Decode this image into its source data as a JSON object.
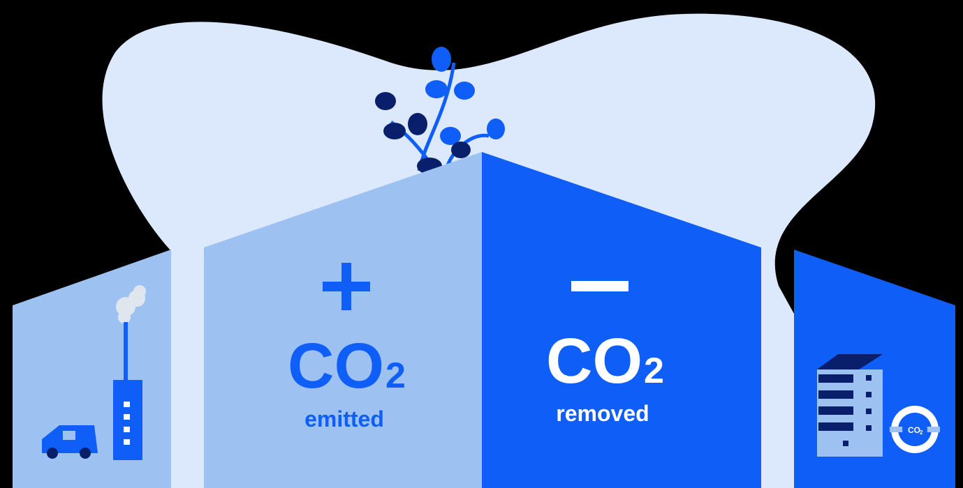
{
  "emitted_panel": {
    "formula": "CO",
    "subscript": "2",
    "label": "emitted"
  },
  "removed_panel": {
    "formula": "CO",
    "subscript": "2",
    "label": "removed"
  },
  "badge": {
    "formula": "CO",
    "subscript": "2"
  }
}
